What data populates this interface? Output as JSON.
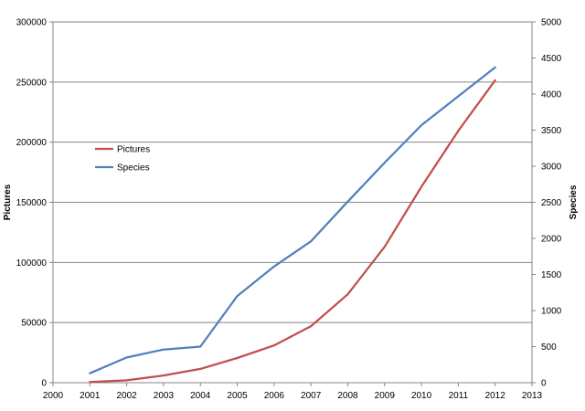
{
  "chart_data": {
    "type": "line",
    "title": "",
    "xlabel": "",
    "ylabel": "Pictures",
    "y2label": "Species",
    "xlim": [
      2000,
      2013
    ],
    "ylim": [
      0,
      300000
    ],
    "y2lim": [
      0,
      5000
    ],
    "x_ticks": [
      "2000",
      "2001",
      "2002",
      "2003",
      "2004",
      "2005",
      "2006",
      "2007",
      "2008",
      "2009",
      "2010",
      "2011",
      "2012",
      "2013"
    ],
    "y_ticks": [
      "0",
      "50000",
      "100000",
      "150000",
      "200000",
      "250000",
      "300000"
    ],
    "y2_ticks": [
      "0",
      "500",
      "1000",
      "1500",
      "2000",
      "2500",
      "3000",
      "3500",
      "4000",
      "4500",
      "5000"
    ],
    "grid": "horizontal",
    "legend_position": "left",
    "x": [
      2001,
      2002,
      2003,
      2004,
      2005,
      2006,
      2007,
      2008,
      2009,
      2010,
      2011,
      2012
    ],
    "series": [
      {
        "name": "Pictures",
        "axis": "left",
        "color": "#C0504D",
        "values": [
          500,
          2000,
          6000,
          11500,
          20500,
          31000,
          47000,
          73500,
          113000,
          163000,
          209500,
          251500
        ]
      },
      {
        "name": "Species",
        "axis": "right",
        "color": "#4F81BD",
        "values": [
          130,
          350,
          460,
          500,
          1200,
          1610,
          1960,
          2510,
          3050,
          3570,
          3970,
          4370
        ]
      }
    ]
  }
}
